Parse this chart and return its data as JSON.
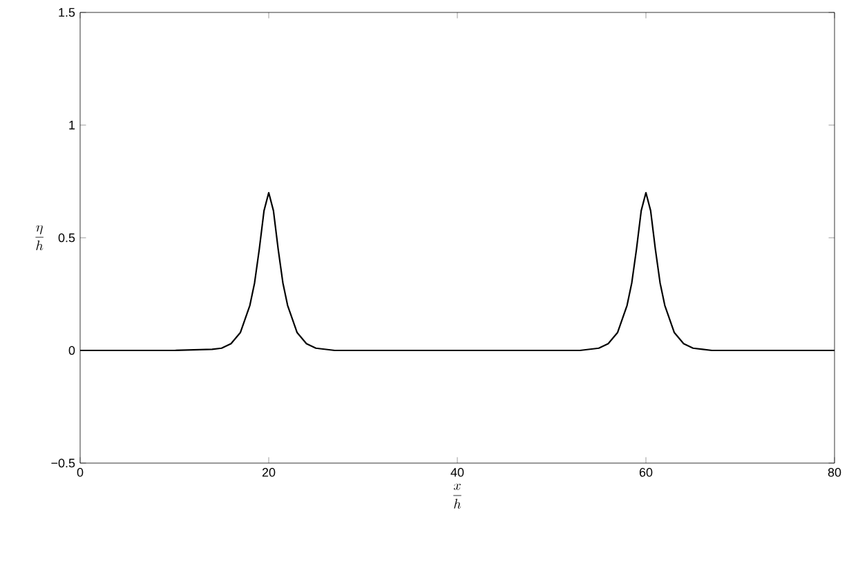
{
  "chart_data": {
    "type": "line",
    "xlabel": "\\frac{x}{h}",
    "ylabel": "\\frac{\\eta}{h}",
    "x": [
      0,
      10,
      14,
      15,
      16,
      17,
      18,
      18.5,
      19,
      19.5,
      20,
      20.5,
      21,
      21.5,
      22,
      23,
      24,
      25,
      26,
      27,
      40,
      53,
      54,
      55,
      56,
      57,
      58,
      58.5,
      59,
      59.5,
      60,
      60.5,
      61,
      61.5,
      62,
      63,
      64,
      65,
      66,
      67,
      80
    ],
    "series": [
      {
        "color": "#000000",
        "values": [
          0,
          0,
          0.005,
          0.01,
          0.03,
          0.08,
          0.2,
          0.3,
          0.45,
          0.62,
          0.7,
          0.62,
          0.45,
          0.3,
          0.2,
          0.08,
          0.03,
          0.01,
          0.005,
          0,
          0,
          0,
          0.005,
          0.01,
          0.03,
          0.08,
          0.2,
          0.3,
          0.45,
          0.62,
          0.7,
          0.62,
          0.45,
          0.3,
          0.2,
          0.08,
          0.03,
          0.01,
          0.005,
          0,
          0
        ]
      }
    ],
    "xlim": [
      0,
      80
    ],
    "ylim": [
      -0.5,
      1.5
    ],
    "xticks": [
      0,
      20,
      40,
      60,
      80
    ],
    "yticks": [
      {
        "value": -0.5,
        "label": "−0.5"
      },
      0,
      0.5,
      1,
      1.5
    ],
    "grid": false,
    "marker": "none",
    "line_style": "solid"
  }
}
